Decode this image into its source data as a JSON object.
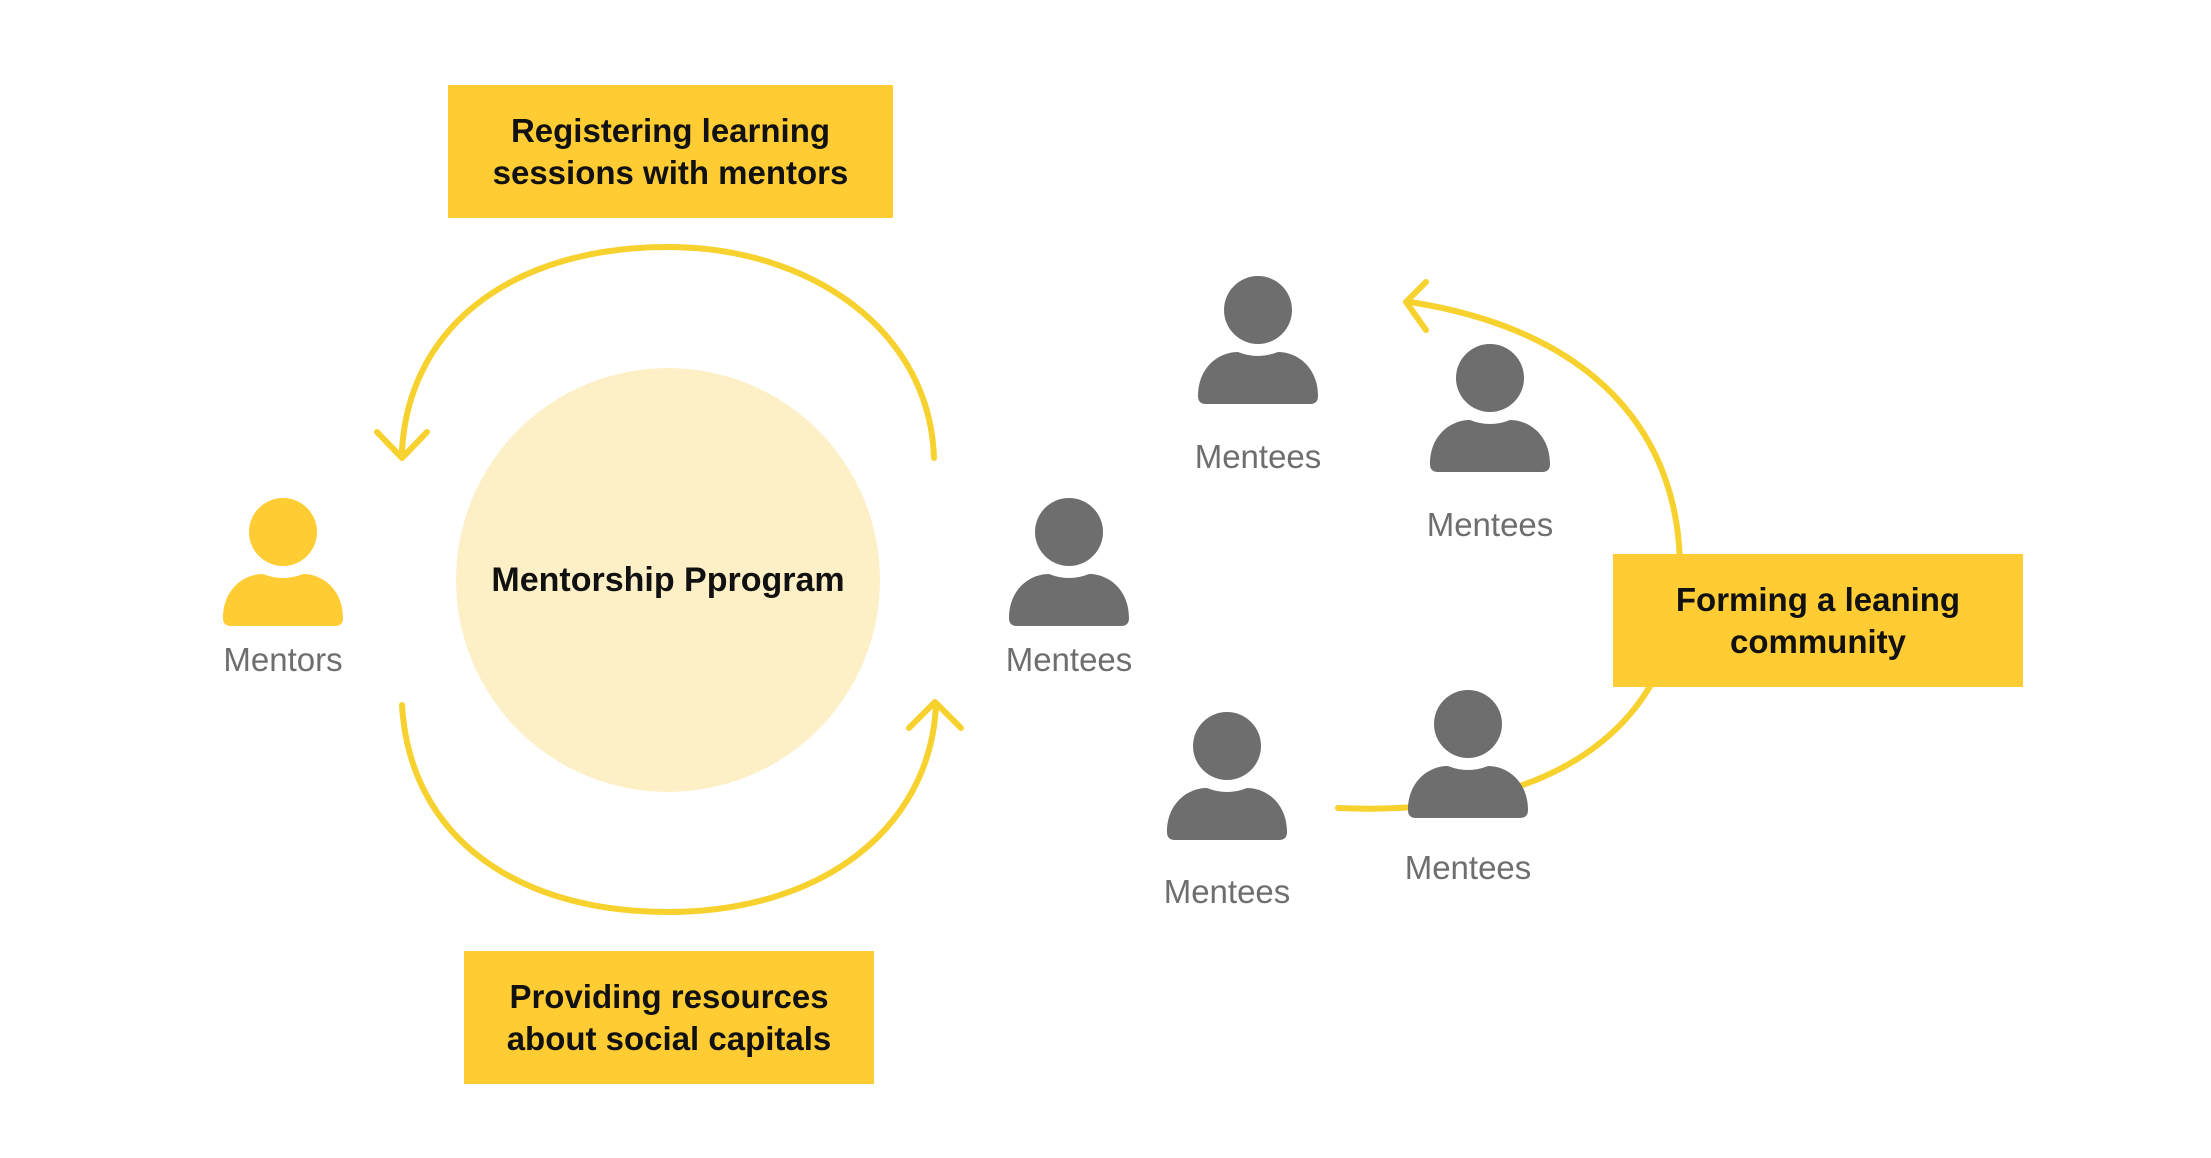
{
  "colors": {
    "accent": "#FFCC33",
    "arrow": "#F7D12E",
    "center_fill": "#FDF0C7",
    "mentee_icon": "#6E6E6E",
    "mentor_icon": "#FFCC33",
    "label_text": "#6E6E6E",
    "box_text": "#111111"
  },
  "center": {
    "label": "Mentorship Pprogram"
  },
  "mentor": {
    "label": "Mentors",
    "icon": "person-icon"
  },
  "mentees": [
    {
      "label": "Mentees",
      "icon": "person-icon"
    },
    {
      "label": "Mentees",
      "icon": "person-icon"
    },
    {
      "label": "Mentees",
      "icon": "person-icon"
    },
    {
      "label": "Mentees",
      "icon": "person-icon"
    },
    {
      "label": "Mentees",
      "icon": "person-icon"
    }
  ],
  "boxes": {
    "top": {
      "line1": "Registering learning",
      "line2": "sessions with mentors"
    },
    "bottom": {
      "line1": "Providing resources",
      "line2": "about social capitals"
    },
    "right": {
      "line1": "Forming a leaning",
      "line2": "community"
    }
  }
}
